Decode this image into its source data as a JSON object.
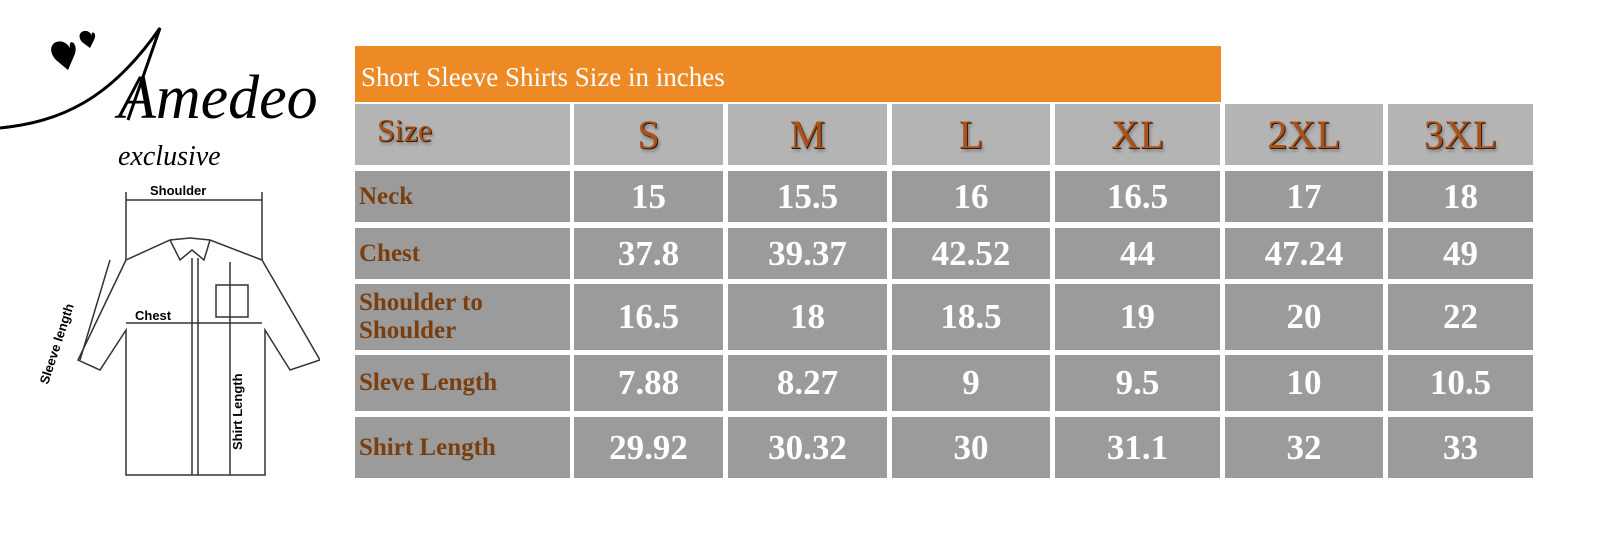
{
  "brand": {
    "name": "Amedeo",
    "tagline": "exclusive"
  },
  "diagram": {
    "labels": {
      "shoulder": "Shoulder",
      "chest": "Chest",
      "sleeve": "Sleeve length",
      "length": "Shirt Length"
    }
  },
  "table": {
    "title": "Short Sleeve Shirts Size in inches",
    "header_label": "Size",
    "sizes": [
      "S",
      "M",
      "L",
      "XL",
      "2XL",
      "3XL"
    ],
    "rows": [
      {
        "label": "Neck",
        "values": [
          "15",
          "15.5",
          "16",
          "16.5",
          "17",
          "18"
        ]
      },
      {
        "label": "Chest",
        "values": [
          "37.8",
          "39.37",
          "42.52",
          "44",
          "47.24",
          "49"
        ]
      },
      {
        "label": "Shoulder to Shoulder",
        "values": [
          "16.5",
          "18",
          "18.5",
          "19",
          "20",
          "22"
        ]
      },
      {
        "label": "Sleve Length",
        "values": [
          "7.88",
          "8.27",
          "9",
          "9.5",
          "10",
          "10.5"
        ]
      },
      {
        "label": "Shirt Length",
        "values": [
          "29.92",
          "30.32",
          "30",
          "31.1",
          "32",
          "33"
        ]
      }
    ]
  },
  "colors": {
    "title_bg": "#ed8a26",
    "header_bg": "#b4b4b4",
    "body_bg": "#9b9b9b",
    "label_text": "#7a3f10",
    "size_text": "#a9521a"
  }
}
